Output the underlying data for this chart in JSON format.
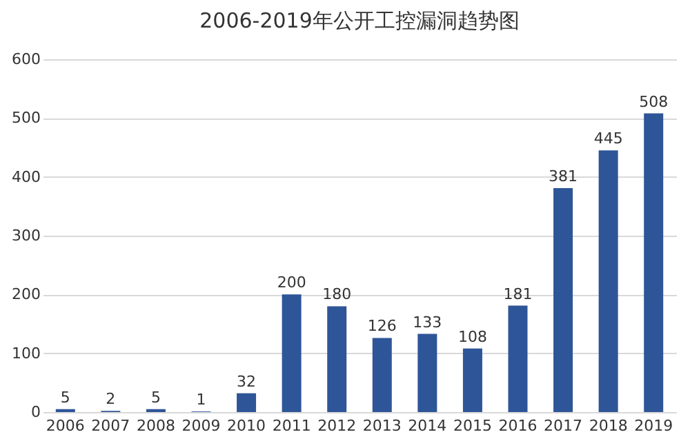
{
  "chart_data": {
    "type": "bar",
    "title": "2006-2019年公开工控漏洞趋势图",
    "categories": [
      "2006",
      "2007",
      "2008",
      "2009",
      "2010",
      "2011",
      "2012",
      "2013",
      "2014",
      "2015",
      "2016",
      "2017",
      "2018",
      "2019"
    ],
    "values": [
      5,
      2,
      5,
      1,
      32,
      200,
      180,
      126,
      133,
      108,
      181,
      381,
      445,
      508
    ],
    "color": "#2e5597",
    "ylim": [
      0,
      600
    ],
    "yticks": [
      0,
      100,
      200,
      300,
      400,
      500,
      600
    ],
    "grid": "y",
    "data_labels": true
  }
}
